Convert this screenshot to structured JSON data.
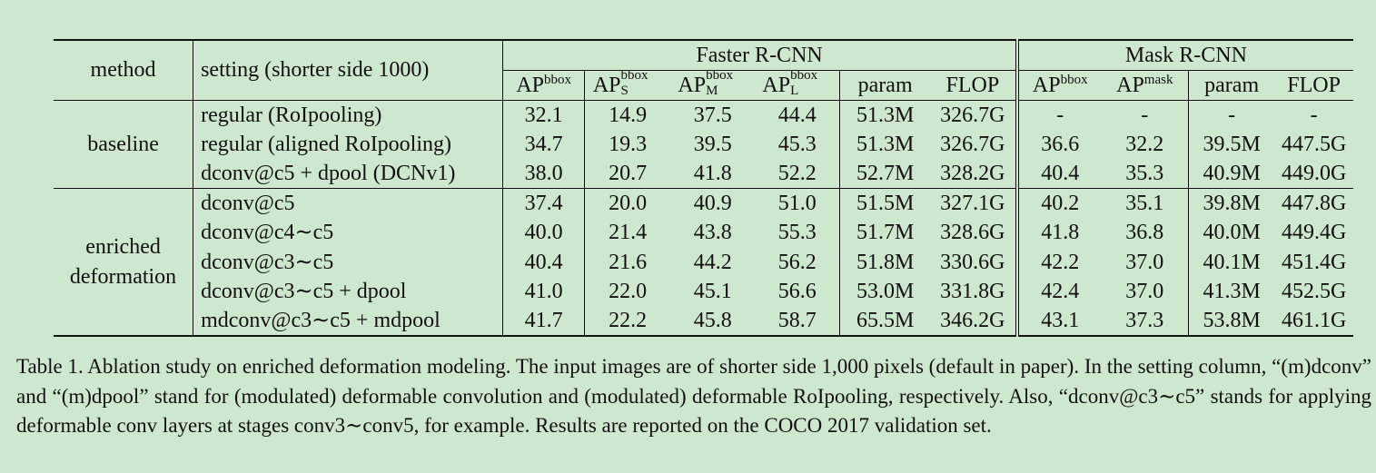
{
  "header": {
    "method": "method",
    "setting": "setting (shorter side 1000)",
    "faster_group": "Faster R-CNN",
    "mask_group": "Mask R-CNN",
    "ap": "AP",
    "bbox": "bbox",
    "mask": "mask",
    "sub_s": "S",
    "sub_m": "M",
    "sub_l": "L",
    "param": "param",
    "flop": "FLOP"
  },
  "groups": [
    {
      "name": "baseline",
      "rows": [
        {
          "setting": "regular (RoIpooling)",
          "f_ap": "32.1",
          "f_aps": "14.9",
          "f_apm": "37.5",
          "f_apl": "44.4",
          "f_param": "51.3M",
          "f_flop": "326.7G",
          "m_ap": "-",
          "m_apmask": "-",
          "m_param": "-",
          "m_flop": "-"
        },
        {
          "setting": "regular (aligned RoIpooling)",
          "f_ap": "34.7",
          "f_aps": "19.3",
          "f_apm": "39.5",
          "f_apl": "45.3",
          "f_param": "51.3M",
          "f_flop": "326.7G",
          "m_ap": "36.6",
          "m_apmask": "32.2",
          "m_param": "39.5M",
          "m_flop": "447.5G"
        },
        {
          "setting": "dconv@c5 + dpool (DCNv1)",
          "f_ap": "38.0",
          "f_aps": "20.7",
          "f_apm": "41.8",
          "f_apl": "52.2",
          "f_param": "52.7M",
          "f_flop": "328.2G",
          "m_ap": "40.4",
          "m_apmask": "35.3",
          "m_param": "40.9M",
          "m_flop": "449.0G"
        }
      ]
    },
    {
      "name_line1": "enriched",
      "name_line2": "deformation",
      "rows": [
        {
          "setting": "dconv@c5",
          "f_ap": "37.4",
          "f_aps": "20.0",
          "f_apm": "40.9",
          "f_apl": "51.0",
          "f_param": "51.5M",
          "f_flop": "327.1G",
          "m_ap": "40.2",
          "m_apmask": "35.1",
          "m_param": "39.8M",
          "m_flop": "447.8G"
        },
        {
          "setting": "dconv@c4∼c5",
          "f_ap": "40.0",
          "f_aps": "21.4",
          "f_apm": "43.8",
          "f_apl": "55.3",
          "f_param": "51.7M",
          "f_flop": "328.6G",
          "m_ap": "41.8",
          "m_apmask": "36.8",
          "m_param": "40.0M",
          "m_flop": "449.4G"
        },
        {
          "setting": "dconv@c3∼c5",
          "f_ap": "40.4",
          "f_aps": "21.6",
          "f_apm": "44.2",
          "f_apl": "56.2",
          "f_param": "51.8M",
          "f_flop": "330.6G",
          "m_ap": "42.2",
          "m_apmask": "37.0",
          "m_param": "40.1M",
          "m_flop": "451.4G"
        },
        {
          "setting": "dconv@c3∼c5 + dpool",
          "f_ap": "41.0",
          "f_aps": "22.0",
          "f_apm": "45.1",
          "f_apl": "56.6",
          "f_param": "53.0M",
          "f_flop": "331.8G",
          "m_ap": "42.4",
          "m_apmask": "37.0",
          "m_param": "41.3M",
          "m_flop": "452.5G"
        },
        {
          "setting": "mdconv@c3∼c5 + mdpool",
          "f_ap": "41.7",
          "f_aps": "22.2",
          "f_apm": "45.8",
          "f_apl": "58.7",
          "f_param": "65.5M",
          "f_flop": "346.2G",
          "m_ap": "43.1",
          "m_apmask": "37.3",
          "m_param": "53.8M",
          "m_flop": "461.1G"
        }
      ]
    }
  ],
  "caption": "Table 1. Ablation study on enriched deformation modeling.  The input images are of shorter side 1,000 pixels (default in paper).  In the setting column, “(m)dconv” and “(m)dpool” stand for (modulated) deformable convolution and (modulated) deformable RoIpooling, respectively. Also, “dconv@c3∼c5” stands for applying deformable conv layers at stages conv3∼conv5, for example. Results are reported on the COCO 2017 validation set."
}
